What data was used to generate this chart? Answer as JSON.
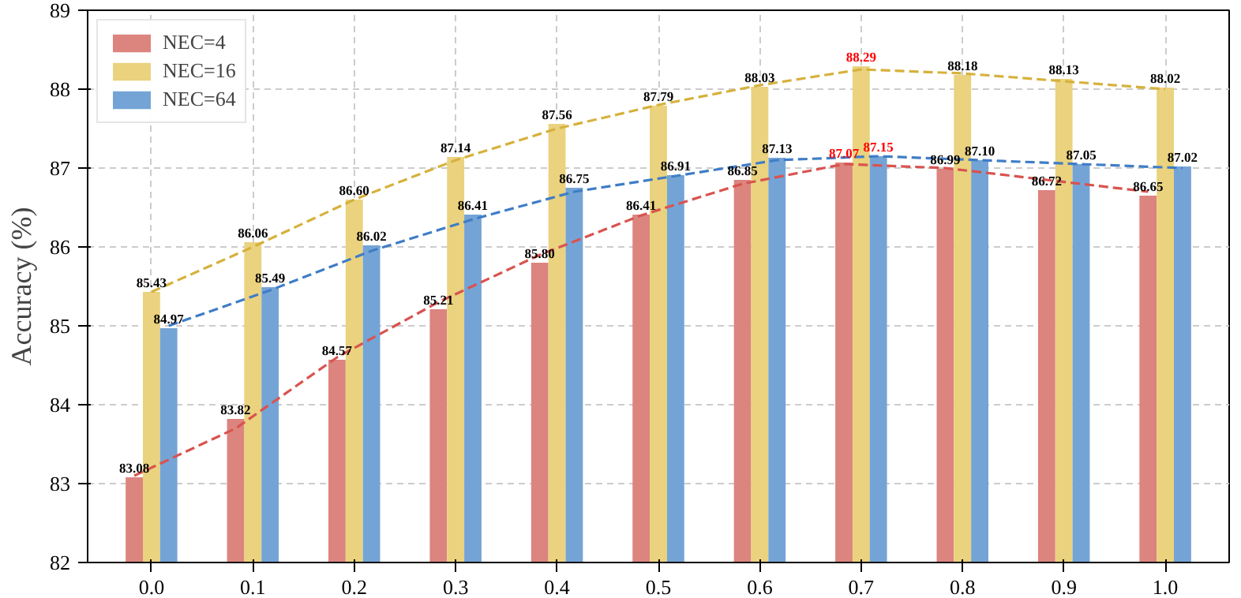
{
  "chart_data": {
    "type": "bar",
    "ylabel": "Accuracy (%)",
    "x": [
      0.0,
      0.1,
      0.2,
      0.3,
      0.4,
      0.5,
      0.6,
      0.7,
      0.8,
      0.9,
      1.0
    ],
    "xlim": [
      -0.063,
      1.063
    ],
    "ylim": [
      82,
      89
    ],
    "xticks": [
      {
        "value": 0.0,
        "label": "0.0"
      },
      {
        "value": 0.1,
        "label": "0.1"
      },
      {
        "value": 0.2,
        "label": "0.2"
      },
      {
        "value": 0.3,
        "label": "0.3"
      },
      {
        "value": 0.4,
        "label": "0.4"
      },
      {
        "value": 0.5,
        "label": "0.5"
      },
      {
        "value": 0.6,
        "label": "0.6"
      },
      {
        "value": 0.7,
        "label": "0.7"
      },
      {
        "value": 0.8,
        "label": "0.8"
      },
      {
        "value": 0.9,
        "label": "0.9"
      },
      {
        "value": 1.0,
        "label": "1.0"
      }
    ],
    "yticks": [
      82,
      83,
      84,
      85,
      86,
      87,
      88,
      89
    ],
    "series": [
      {
        "name": "NEC=4",
        "color": "#dc847e",
        "values": [
          83.08,
          83.82,
          84.57,
          85.21,
          85.8,
          86.41,
          86.85,
          87.07,
          86.99,
          86.72,
          86.65
        ],
        "value_labels": [
          "83.08",
          "83.82",
          "84.57",
          "85.21",
          "85.80",
          "86.41",
          "86.85",
          "87.07",
          "86.99",
          "86.72",
          "86.65"
        ]
      },
      {
        "name": "NEC=16",
        "color": "#ead27e",
        "values": [
          85.43,
          86.06,
          86.6,
          87.14,
          87.56,
          87.79,
          88.03,
          88.29,
          88.18,
          88.13,
          88.02
        ],
        "value_labels": [
          "85.43",
          "86.06",
          "86.60",
          "87.14",
          "87.56",
          "87.79",
          "88.03",
          "88.29",
          "88.18",
          "88.13",
          "88.02"
        ]
      },
      {
        "name": "NEC=64",
        "color": "#74a4d6",
        "values": [
          84.97,
          85.49,
          86.02,
          86.41,
          86.75,
          86.91,
          87.13,
          87.15,
          87.1,
          87.05,
          87.02
        ],
        "value_labels": [
          "84.97",
          "85.49",
          "86.02",
          "86.41",
          "86.75",
          "86.91",
          "87.13",
          "87.15",
          "87.10",
          "87.05",
          "87.02"
        ]
      },
      {
        "type": "line",
        "color": "#d9534f",
        "line_style": "dashed",
        "x": [
          -0.017,
          0.083,
          0.183,
          0.283,
          0.383,
          0.483,
          0.583,
          0.683,
          0.783,
          0.883,
          0.983
        ],
        "values": [
          83.1,
          83.7,
          84.6,
          85.3,
          85.9,
          86.4,
          86.8,
          87.05,
          87.0,
          86.85,
          86.7
        ]
      },
      {
        "type": "line",
        "color": "#d6b13c",
        "line_style": "dashed",
        "x": [
          0.0,
          0.1,
          0.2,
          0.3,
          0.4,
          0.5,
          0.6,
          0.7,
          0.8,
          0.9,
          1.0
        ],
        "values": [
          85.43,
          86.0,
          86.6,
          87.1,
          87.5,
          87.8,
          88.05,
          88.25,
          88.2,
          88.1,
          88.0
        ]
      },
      {
        "type": "line",
        "color": "#3f7dc6",
        "line_style": "dashed",
        "x": [
          0.017,
          0.117,
          0.217,
          0.317,
          0.417,
          0.517,
          0.617,
          0.717,
          0.817,
          0.917,
          1.017
        ],
        "values": [
          85.0,
          85.45,
          85.95,
          86.35,
          86.7,
          86.9,
          87.1,
          87.15,
          87.1,
          87.05,
          87.0
        ]
      }
    ],
    "grid": true,
    "legend": "top left"
  }
}
